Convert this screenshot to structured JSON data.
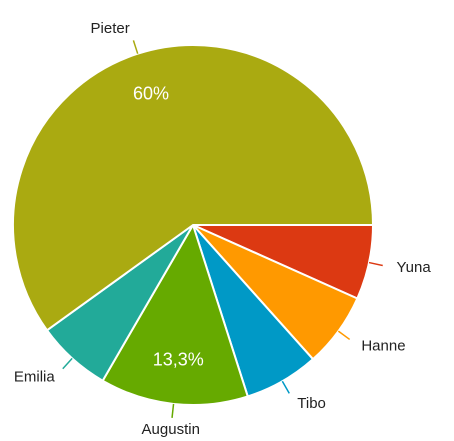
{
  "chart_data": {
    "type": "pie",
    "categories": [
      "Yuna",
      "Hanne",
      "Tibo",
      "Augustin",
      "Emilia",
      "Pieter"
    ],
    "values": [
      6.7,
      6.7,
      6.7,
      13.3,
      6.7,
      60
    ],
    "value_labels": [
      null,
      null,
      null,
      "13,3%",
      null,
      "60%"
    ],
    "colors": [
      "#dc3912",
      "#ff9900",
      "#0099c6",
      "#66aa00",
      "#22aa99",
      "#aaaa11"
    ]
  }
}
